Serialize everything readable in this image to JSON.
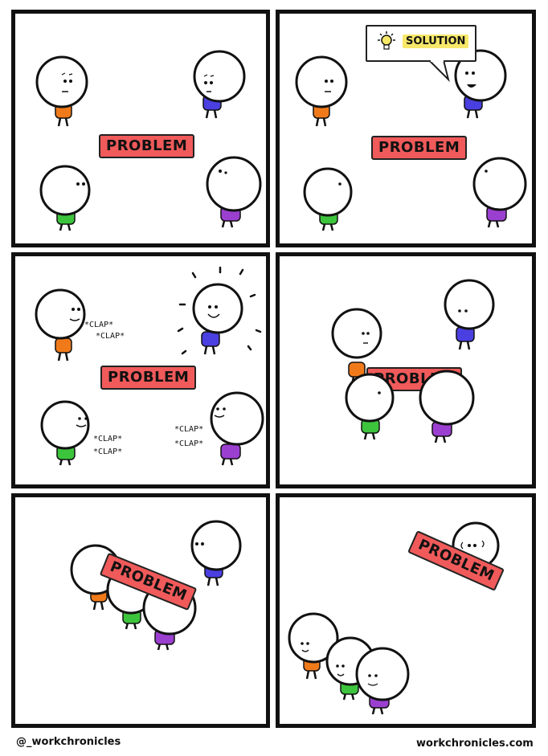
{
  "comic": {
    "problem_label": "PROBLEM",
    "solution_label": "SOLUTION",
    "clap_text": "*CLAP*"
  },
  "footer": {
    "left_handle": "@_workchronicles",
    "right_site": "workchronicles.com"
  },
  "colors": {
    "orange": "#f07a1a",
    "blue": "#4a3fe0",
    "green": "#3dc43d",
    "purple": "#9b3fd0",
    "problem_red": "#f05a5a",
    "solution_yellow": "#f7e86a"
  }
}
